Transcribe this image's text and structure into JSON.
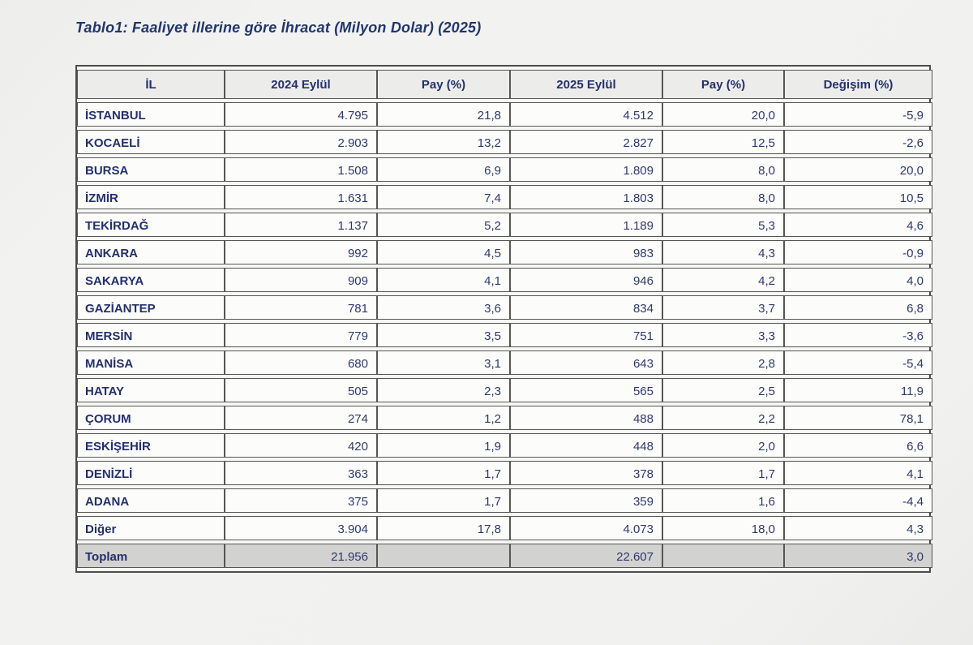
{
  "title": "Tablo1: Faaliyet illerine göre İhracat (Milyon Dolar) (2025)",
  "table": {
    "columns": [
      "İL",
      "2024 Eylül",
      "Pay  (%)",
      "2025 Eylül",
      "Pay  (%)",
      "Değişim (%)"
    ],
    "rows": [
      [
        "İSTANBUL",
        "4.795",
        "21,8",
        "4.512",
        "20,0",
        "-5,9"
      ],
      [
        "KOCAELİ",
        "2.903",
        "13,2",
        "2.827",
        "12,5",
        "-2,6"
      ],
      [
        "BURSA",
        "1.508",
        "6,9",
        "1.809",
        "8,0",
        "20,0"
      ],
      [
        "İZMİR",
        "1.631",
        "7,4",
        "1.803",
        "8,0",
        "10,5"
      ],
      [
        "TEKİRDAĞ",
        "1.137",
        "5,2",
        "1.189",
        "5,3",
        "4,6"
      ],
      [
        "ANKARA",
        "992",
        "4,5",
        "983",
        "4,3",
        "-0,9"
      ],
      [
        "SAKARYA",
        "909",
        "4,1",
        "946",
        "4,2",
        "4,0"
      ],
      [
        "GAZİANTEP",
        "781",
        "3,6",
        "834",
        "3,7",
        "6,8"
      ],
      [
        "MERSİN",
        "779",
        "3,5",
        "751",
        "3,3",
        "-3,6"
      ],
      [
        "MANİSA",
        "680",
        "3,1",
        "643",
        "2,8",
        "-5,4"
      ],
      [
        "HATAY",
        "505",
        "2,3",
        "565",
        "2,5",
        "11,9"
      ],
      [
        "ÇORUM",
        "274",
        "1,2",
        "488",
        "2,2",
        "78,1"
      ],
      [
        "ESKİŞEHİR",
        "420",
        "1,9",
        "448",
        "2,0",
        "6,6"
      ],
      [
        "DENİZLİ",
        "363",
        "1,7",
        "378",
        "1,7",
        "4,1"
      ],
      [
        "ADANA",
        "375",
        "1,7",
        "359",
        "1,6",
        "-4,4"
      ],
      [
        "Diğer",
        "3.904",
        "17,8",
        "4.073",
        "18,0",
        "4,3"
      ]
    ],
    "total_row": [
      "Toplam",
      "21.956",
      "",
      "22.607",
      "",
      "3,0"
    ]
  },
  "colors": {
    "text_navy": "#24306a",
    "border": "#565656",
    "header_bg": "#ececeb",
    "row_bg": "#fcfcfb",
    "total_bg": "#d2d2d0",
    "page_bg": "#f0f0ef"
  }
}
